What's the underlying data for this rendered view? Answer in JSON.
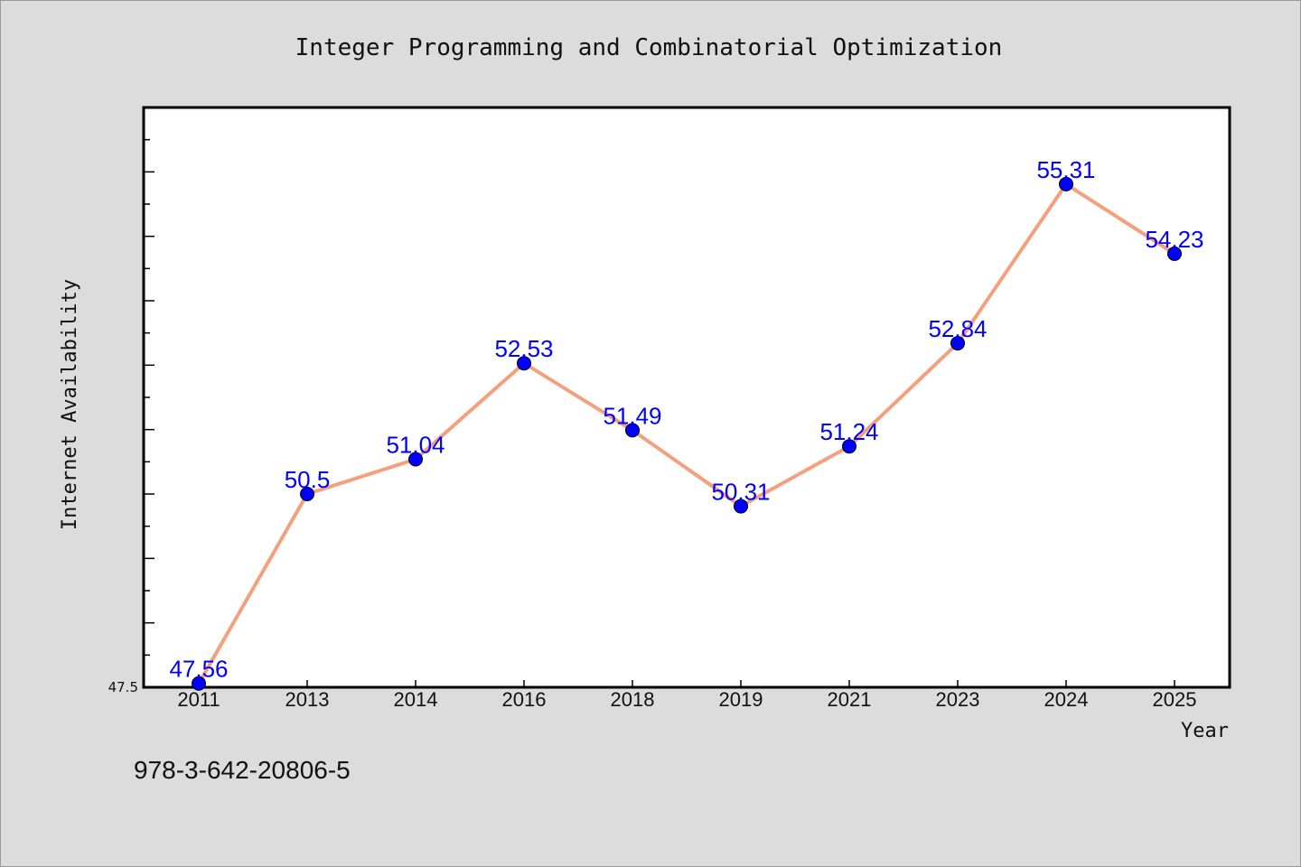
{
  "chart_data": {
    "type": "line",
    "title": "Integer Programming and Combinatorial Optimization",
    "xlabel": "Year",
    "ylabel": "Internet Availability",
    "categories": [
      "2011",
      "2013",
      "2014",
      "2016",
      "2018",
      "2019",
      "2021",
      "2023",
      "2024",
      "2025"
    ],
    "series": [
      {
        "values": [
          47.56,
          50.5,
          51.04,
          52.53,
          51.49,
          50.31,
          51.24,
          52.84,
          55.31,
          54.23
        ],
        "labels": [
          "47.56",
          "50.5",
          "51.04",
          "52.53",
          "51.49",
          "50.31",
          "51.24",
          "52.84",
          "55.31",
          "54.23"
        ]
      }
    ],
    "ylim": [
      47.5,
      56.5
    ],
    "yticks_labeled": [
      "47.5"
    ],
    "ymin_label": "47.5",
    "grid": false,
    "colors": {
      "line": "#f4a07e",
      "marker": "#0000ff",
      "label": "#0000ff",
      "background": "#dcdcdc",
      "plot_bg": "#ffffff"
    }
  },
  "footer": {
    "isbn": "978-3-642-20806-5"
  }
}
